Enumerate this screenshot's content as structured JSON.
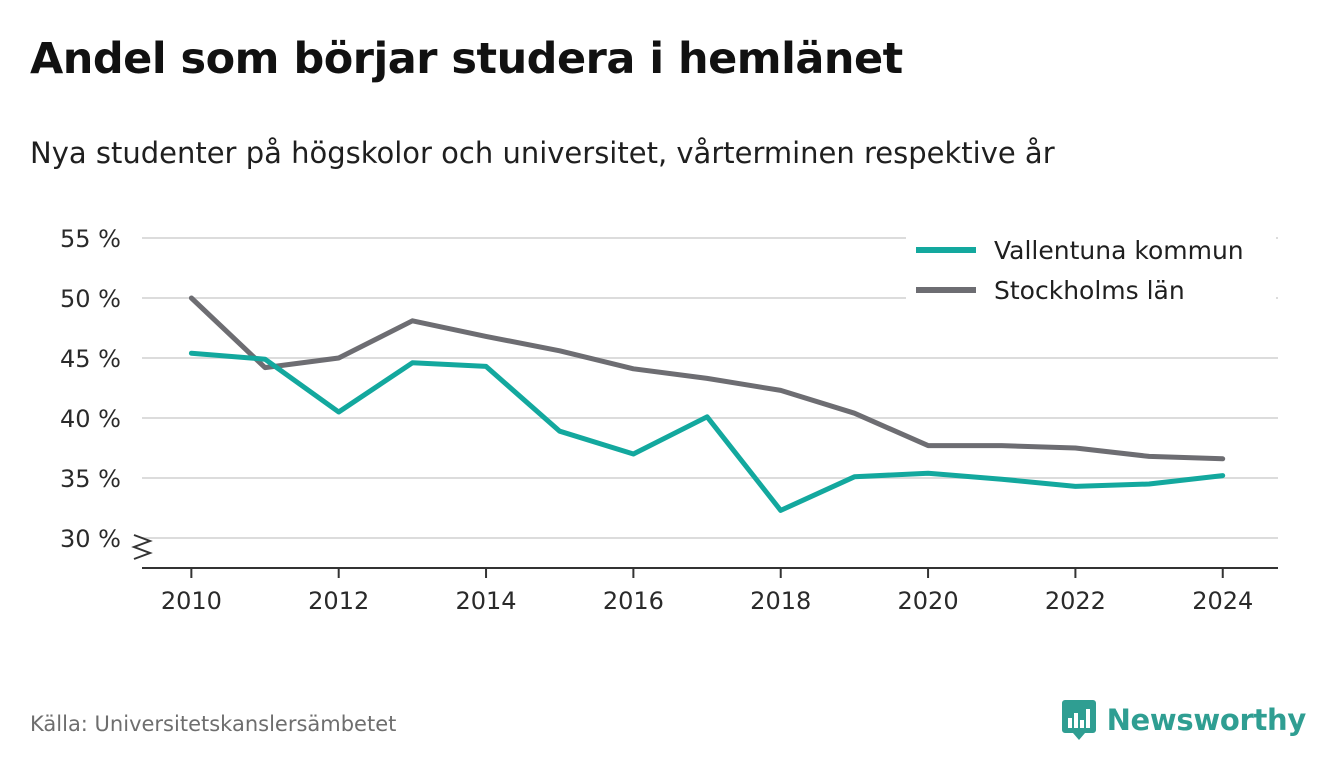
{
  "header": {
    "title": "Andel som börjar studera i hemlänet",
    "subtitle": "Nya studenter på högskolor och universitet, vårterminen respektive år"
  },
  "footer": {
    "source": "Källa: Universitetskanslersämbetet",
    "brand": "Newsworthy"
  },
  "colors": {
    "accent": "#13a89e",
    "series_gray": "#6d6d72",
    "grid": "#dcdcdc",
    "brand": "#2f9e92"
  },
  "chart_data": {
    "type": "line",
    "x": [
      2010,
      2011,
      2012,
      2013,
      2014,
      2015,
      2016,
      2017,
      2018,
      2019,
      2020,
      2021,
      2022,
      2023,
      2024
    ],
    "series": [
      {
        "name": "Vallentuna kommun",
        "color": "#13a89e",
        "values": [
          45.4,
          44.9,
          40.5,
          44.6,
          44.3,
          38.9,
          37.0,
          40.1,
          32.3,
          35.1,
          35.4,
          34.9,
          34.3,
          34.5,
          35.2
        ]
      },
      {
        "name": "Stockholms län",
        "color": "#6d6d72",
        "values": [
          50.0,
          44.2,
          45.0,
          48.1,
          46.8,
          45.6,
          44.1,
          43.3,
          42.3,
          40.4,
          37.7,
          37.7,
          37.5,
          36.8,
          36.6
        ]
      }
    ],
    "yticks": [
      30,
      35,
      40,
      45,
      50,
      55
    ],
    "ytick_labels": [
      "30 %",
      "35 %",
      "40 %",
      "45 %",
      "50 %",
      "55 %"
    ],
    "xticks": [
      2010,
      2012,
      2014,
      2016,
      2018,
      2020,
      2022,
      2024
    ],
    "ylim": [
      27.5,
      55
    ],
    "xlim": [
      2009.33,
      2024.75
    ],
    "y_axis_break": true,
    "grid": true,
    "legend_position": "top-right"
  }
}
